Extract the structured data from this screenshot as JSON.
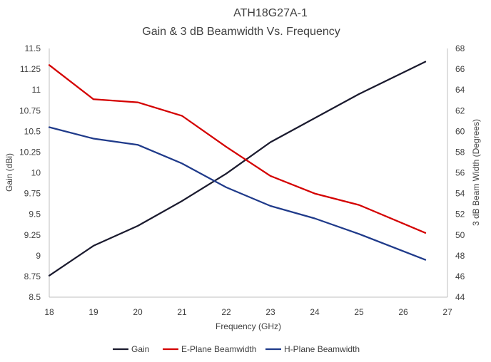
{
  "chart_data": {
    "type": "line",
    "title": "ATH18G27A-1",
    "subtitle": "Gain & 3 dB Beamwidth Vs. Frequency",
    "xlabel": "Frequency (GHz)",
    "ylabel_left": "Gain (dBi)",
    "ylabel_right": "3 dB Beam Width (Degrees)",
    "xlim": [
      18,
      27
    ],
    "ylim_left": [
      8.5,
      11.5
    ],
    "ylim_right": [
      44,
      68
    ],
    "x_ticks": [
      "18",
      "19",
      "20",
      "21",
      "22",
      "23",
      "24",
      "25",
      "26",
      "27"
    ],
    "y_left_ticks": [
      "11.5",
      "11.25",
      "11",
      "10.75",
      "10.5",
      "10.25",
      "10",
      "9.75",
      "9.5",
      "9.25",
      "9",
      "8.75",
      "8.5"
    ],
    "y_right_ticks": [
      "68",
      "66",
      "64",
      "62",
      "60",
      "58",
      "56",
      "54",
      "52",
      "50",
      "48",
      "46",
      "44"
    ],
    "grid": false,
    "legend_position": "bottom",
    "series": [
      {
        "name": "Gain",
        "axis": "left",
        "color": "#1a1a2e",
        "x": [
          18,
          19,
          20,
          21,
          22,
          23,
          24,
          25,
          26.5
        ],
        "values": [
          8.76,
          9.12,
          9.36,
          9.66,
          9.99,
          10.37,
          10.66,
          10.95,
          11.34
        ]
      },
      {
        "name": "E-Plane Beamwidth",
        "axis": "right",
        "color": "#d40000",
        "x": [
          18,
          19,
          20,
          21,
          22,
          23,
          24,
          25,
          26.5
        ],
        "values": [
          66.4,
          63.1,
          62.8,
          61.5,
          58.5,
          55.7,
          54.0,
          52.9,
          50.2
        ]
      },
      {
        "name": "H-Plane Beamwidth",
        "axis": "right",
        "color": "#1f3a8a",
        "x": [
          18,
          19,
          20,
          21,
          22,
          23,
          24,
          25,
          26.5
        ],
        "values": [
          60.4,
          59.3,
          58.7,
          56.9,
          54.6,
          52.8,
          51.6,
          50.1,
          47.6
        ]
      }
    ]
  }
}
